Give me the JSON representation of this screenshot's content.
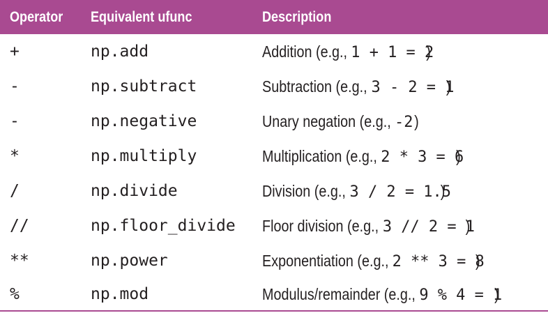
{
  "table": {
    "headers": {
      "operator": "Operator",
      "ufunc": "Equivalent ufunc",
      "description": "Description"
    },
    "rows": [
      {
        "operator": "+",
        "ufunc": "np.add",
        "desc_text": "Addition (e.g., ",
        "desc_example": "1 + 1 = 2",
        "desc_close": ")"
      },
      {
        "operator": "-",
        "ufunc": "np.subtract",
        "desc_text": "Subtraction (e.g., ",
        "desc_example": "3 - 2 = 1",
        "desc_close": ")"
      },
      {
        "operator": "-",
        "ufunc": "np.negative",
        "desc_text": "Unary negation (e.g., ",
        "desc_example": "-2",
        "desc_close": ")"
      },
      {
        "operator": "*",
        "ufunc": "np.multiply",
        "desc_text": "Multiplication (e.g., ",
        "desc_example": "2 * 3 = 6",
        "desc_close": ")"
      },
      {
        "operator": "/",
        "ufunc": "np.divide",
        "desc_text": "Division (e.g., ",
        "desc_example": "3 / 2 = 1.5",
        "desc_close": ")"
      },
      {
        "operator": "//",
        "ufunc": "np.floor_divide",
        "desc_text": "Floor division (e.g., ",
        "desc_example": "3 // 2 = 1",
        "desc_close": ")"
      },
      {
        "operator": "**",
        "ufunc": "np.power",
        "desc_text": "Exponentiation (e.g., ",
        "desc_example": "2 ** 3 = 8",
        "desc_close": ")"
      },
      {
        "operator": "%",
        "ufunc": "np.mod",
        "desc_text": "Modulus/remainder (e.g., ",
        "desc_example": "9 % 4 = 1",
        "desc_close": ")"
      }
    ]
  },
  "colors": {
    "header_bg": "#a94a91",
    "header_text": "#ffffff",
    "body_text": "#231f20"
  }
}
